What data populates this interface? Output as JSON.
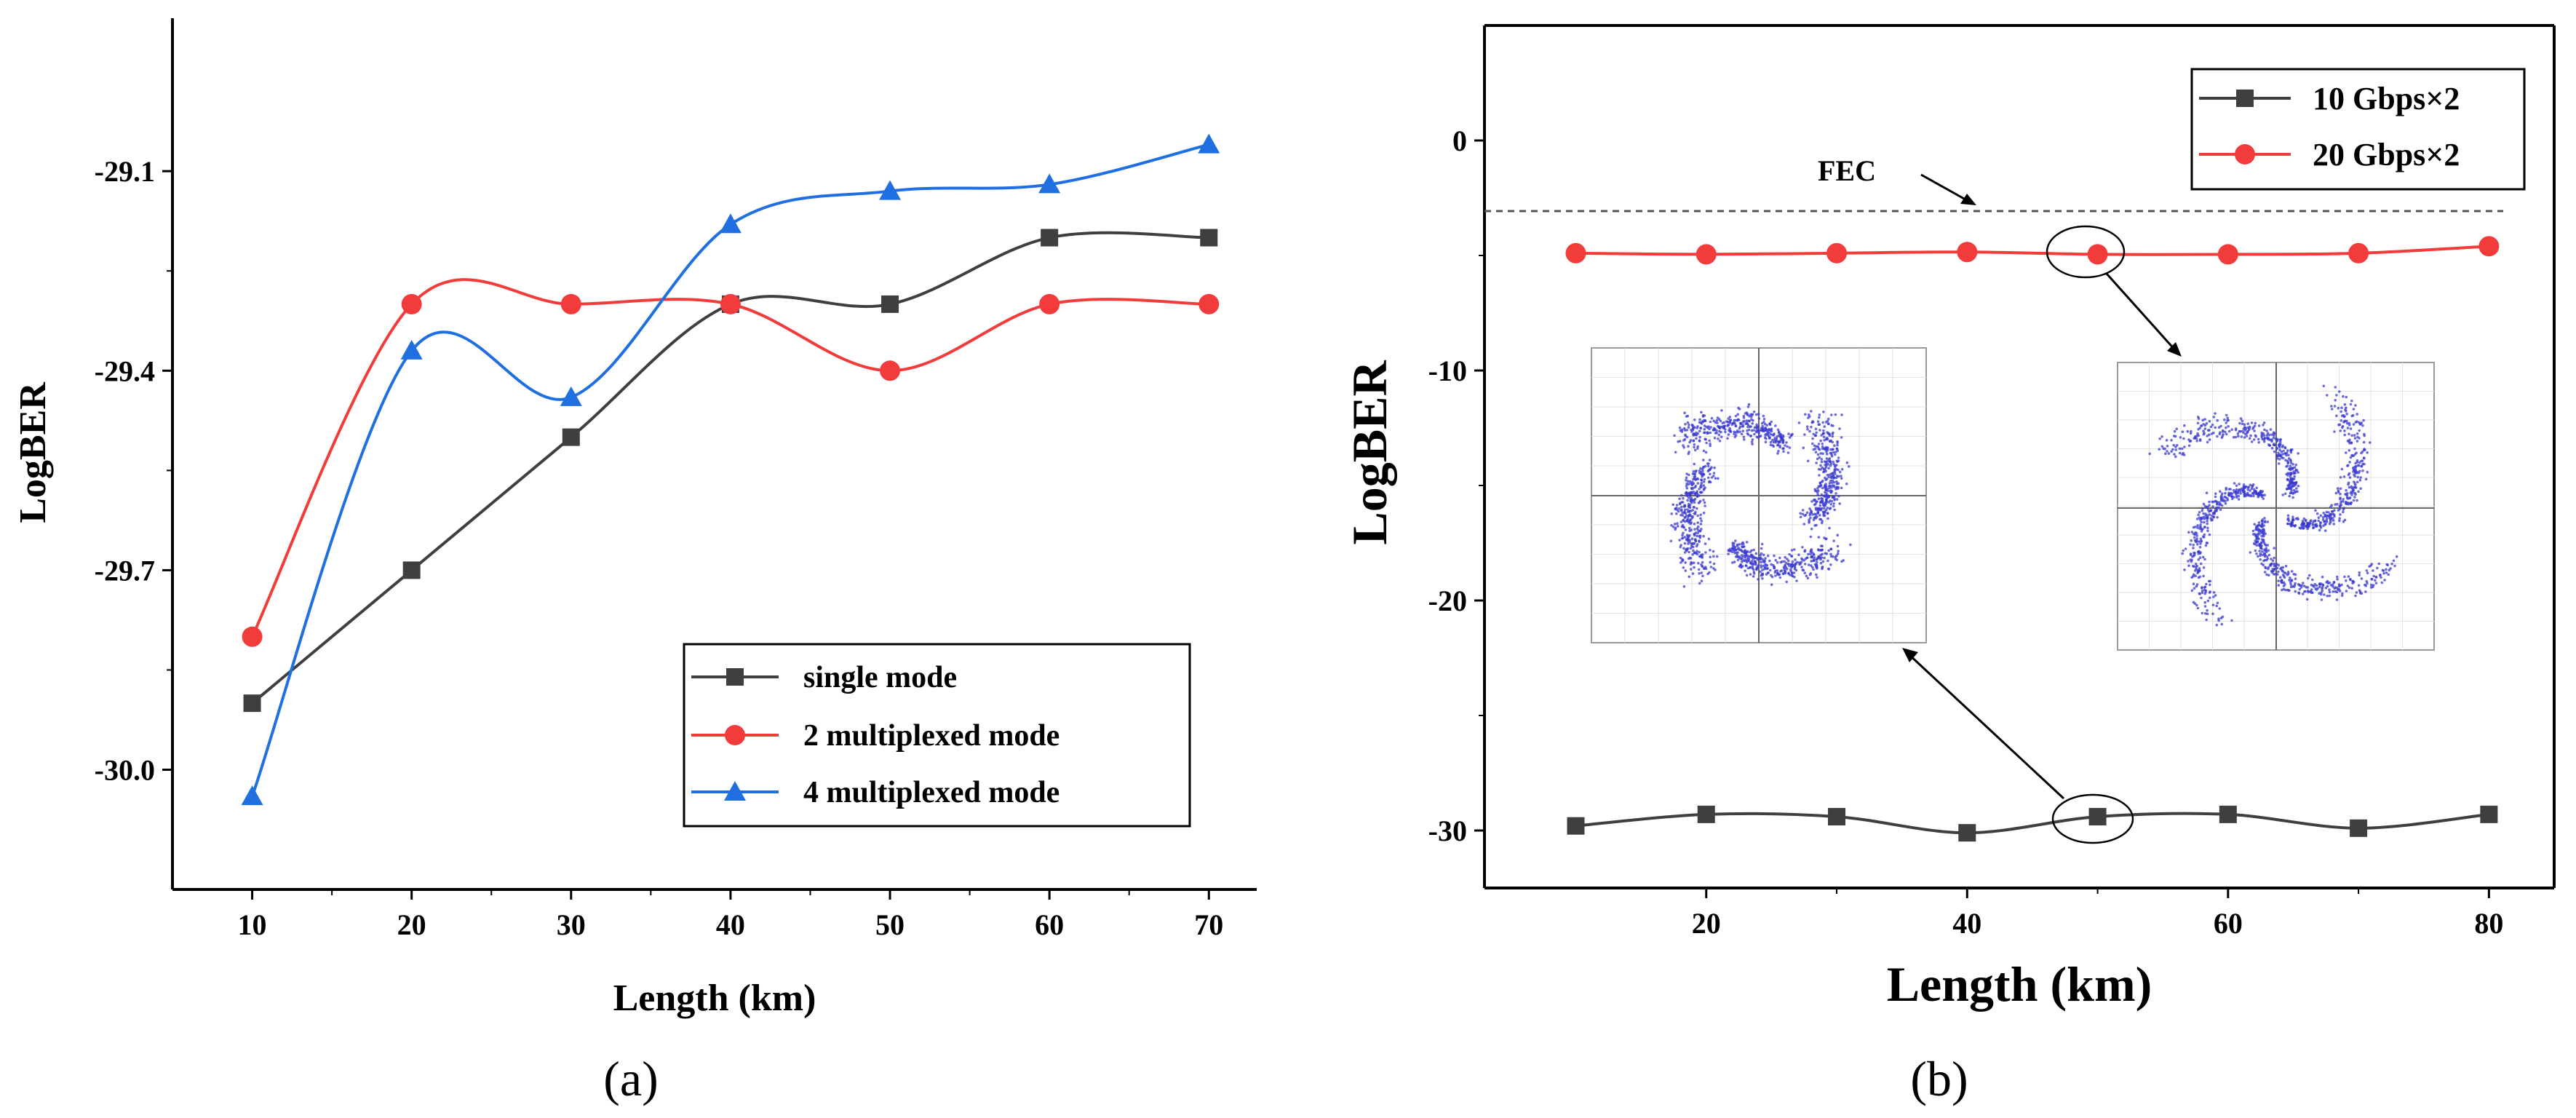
{
  "figure": {
    "panel_labels": [
      "(a)",
      "(b)"
    ]
  },
  "chart_data": [
    {
      "type": "line",
      "panel": "(a)",
      "xlabel": "Length (km)",
      "ylabel": "LogBER",
      "xlim": [
        5,
        73
      ],
      "ylim": [
        -30.18,
        -28.87
      ],
      "xticks": [
        10,
        20,
        30,
        40,
        50,
        60,
        70
      ],
      "xtick_labels": [
        "10",
        "20",
        "30",
        "40",
        "50",
        "60",
        "70"
      ],
      "yticks": [
        -30.0,
        -29.7,
        -29.4,
        -29.1
      ],
      "ytick_labels": [
        "-30.0",
        "-29.7",
        "-29.4",
        "-29.1"
      ],
      "x": [
        10,
        20,
        30,
        40,
        50,
        60,
        70
      ],
      "series": [
        {
          "name": "single mode",
          "color": "#3f3f3f",
          "marker": "square",
          "values": [
            -29.9,
            -29.7,
            -29.5,
            -29.3,
            -29.3,
            -29.2,
            -29.2
          ]
        },
        {
          "name": "2 multiplexed mode",
          "color": "#f23b3b",
          "marker": "circle",
          "values": [
            -29.8,
            -29.3,
            -29.3,
            -29.3,
            -29.4,
            -29.3,
            -29.3
          ]
        },
        {
          "name": "4 multiplexed mode",
          "color": "#1f6fe0",
          "marker": "triangle",
          "values": [
            -30.04,
            -29.37,
            -29.44,
            -29.18,
            -29.13,
            -29.12,
            -29.06
          ]
        }
      ],
      "legend": "bottom-right",
      "grid": false
    },
    {
      "type": "line",
      "panel": "(b)",
      "xlabel": "Length (km)",
      "ylabel": "LogBER",
      "xlim": [
        3,
        85
      ],
      "ylim": [
        -32.5,
        5
      ],
      "xticks": [
        20,
        40,
        60,
        80
      ],
      "xtick_labels": [
        "20",
        "40",
        "60",
        "80"
      ],
      "yticks": [
        -30,
        -20,
        -10,
        0
      ],
      "ytick_labels": [
        "-30",
        "-20",
        "-10",
        "0"
      ],
      "x": [
        10,
        20,
        30,
        40,
        50,
        60,
        70,
        80
      ],
      "series": [
        {
          "name": "10 Gbps×2",
          "color": "#3f3f3f",
          "marker": "square",
          "values": [
            -29.8,
            -29.3,
            -29.4,
            -30.1,
            -29.4,
            -29.3,
            -29.9,
            -29.3
          ]
        },
        {
          "name": "20 Gbps×2",
          "color": "#f23b3b",
          "marker": "circle",
          "values": [
            -4.9,
            -4.95,
            -4.9,
            -4.85,
            -4.95,
            -4.95,
            -4.9,
            -4.6
          ]
        }
      ],
      "annotations": [
        {
          "text": "FEC",
          "type": "threshold-line",
          "y": -3.1
        }
      ],
      "legend": "top-right",
      "grid": false
    }
  ]
}
